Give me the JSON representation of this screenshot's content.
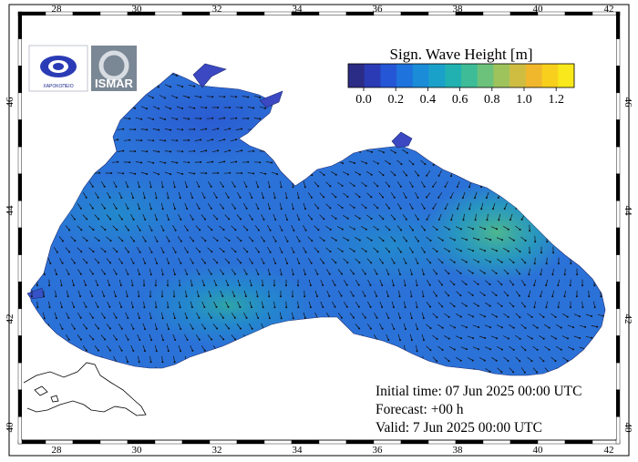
{
  "legend": {
    "title": "Sign. Wave Height [m]",
    "ticks": [
      "0.0",
      "0.2",
      "0.4",
      "0.6",
      "0.8",
      "1.0",
      "1.2"
    ],
    "colors": [
      "#2b2c86",
      "#2a3bb5",
      "#2556d6",
      "#1e73dc",
      "#1a8cd8",
      "#1aa1c9",
      "#21b1b1",
      "#3dbc97",
      "#6cc27a",
      "#9fc35c",
      "#cfbd42",
      "#f0b72c",
      "#f8cf1d",
      "#f9e81c"
    ]
  },
  "axes": {
    "x_ticks": [
      "28",
      "30",
      "32",
      "34",
      "36",
      "38",
      "40",
      "42"
    ],
    "y_ticks": [
      "40",
      "42",
      "44",
      "46"
    ]
  },
  "info": {
    "initial": "Initial time: 07 Jun 2025 00:00 UTC",
    "forecast": "Forecast: +00 h",
    "valid": "Valid:  7 Jun 2025 00:00 UTC"
  },
  "logos": {
    "left_text": "ΧΑΡΟΚΟΠΕΙΟ",
    "right_text": "ISMAR"
  },
  "colors": {
    "sea_base": "#2b72d8",
    "sea_light": "#1f8fd0",
    "sea_teal": "#27a7b5",
    "sea_green": "#4fbb8a",
    "land": "#ffffff",
    "frame": "#000000"
  }
}
